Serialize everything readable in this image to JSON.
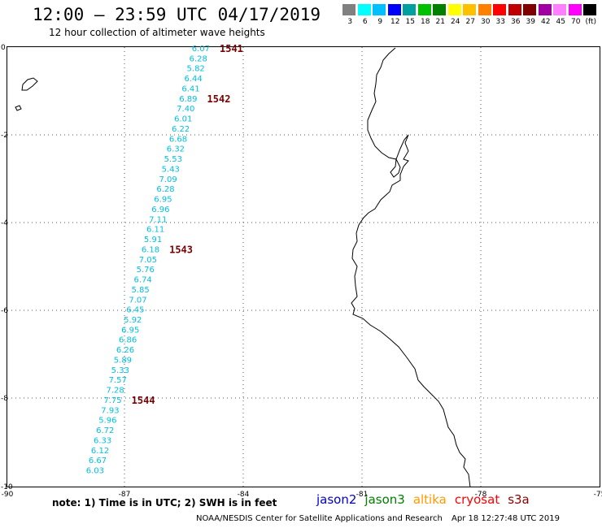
{
  "header": {
    "title": "12:00 – 23:59 UTC 04/17/2019",
    "subtitle": "12 hour collection of altimeter wave heights"
  },
  "legend": {
    "colors": [
      "#808080",
      "#00ffff",
      "#00c0ff",
      "#0000ff",
      "#00a0a0",
      "#00c000",
      "#008000",
      "#ffff00",
      "#ffc000",
      "#ff8000",
      "#ff0000",
      "#c00000",
      "#800000",
      "#a000a0",
      "#ff80ff",
      "#ff00ff",
      "#000000"
    ],
    "labels": [
      "3",
      "6",
      "9",
      "12",
      "15",
      "18",
      "21",
      "24",
      "27",
      "30",
      "33",
      "36",
      "39",
      "42",
      "45",
      "70",
      "(ft)"
    ]
  },
  "axes": {
    "x_labels": [
      "-90",
      "-87",
      "-84",
      "-81",
      "-78",
      "-75"
    ],
    "y_labels": [
      "0",
      "-2",
      "-4",
      "-6",
      "-8",
      "-10"
    ]
  },
  "wave_heights": [
    "6.07",
    "6.28",
    "5.82",
    "6.44",
    "6.41",
    "6.89",
    "7.40",
    "6.01",
    "6.22",
    "6.68",
    "6.32",
    "5.53",
    "5.43",
    "7.09",
    "6.28",
    "6.95",
    "6.96",
    "7.11",
    "6.11",
    "5.91",
    "6.18",
    "7.05",
    "5.76",
    "6.74",
    "5.85",
    "7.07",
    "6.45",
    "5.92",
    "6.95",
    "6.86",
    "6.26",
    "5.89",
    "5.33",
    "7.57",
    "7.28",
    "7.75",
    "7.93",
    "5.96",
    "6.72",
    "6.33",
    "6.12",
    "6.67",
    "6.03"
  ],
  "passes": [
    {
      "id": "1541",
      "row": 0
    },
    {
      "id": "1542",
      "row": 5
    },
    {
      "id": "1543",
      "row": 20
    },
    {
      "id": "1544",
      "row": 35
    }
  ],
  "note": "note: 1) Time is in UTC; 2) SWH is in feet",
  "satellites": [
    {
      "name": "jason2",
      "color": "#0000cc"
    },
    {
      "name": "jason3",
      "color": "#008000"
    },
    {
      "name": "altika",
      "color": "#ff9900"
    },
    {
      "name": "cryosat",
      "color": "#ff0000"
    },
    {
      "name": "s3a",
      "color": "#8b0000"
    }
  ],
  "footer": {
    "org": "NOAA/NESDIS Center for Satellite Applications and Research",
    "timestamp": "Apr 18 12:27:48 UTC 2019"
  }
}
